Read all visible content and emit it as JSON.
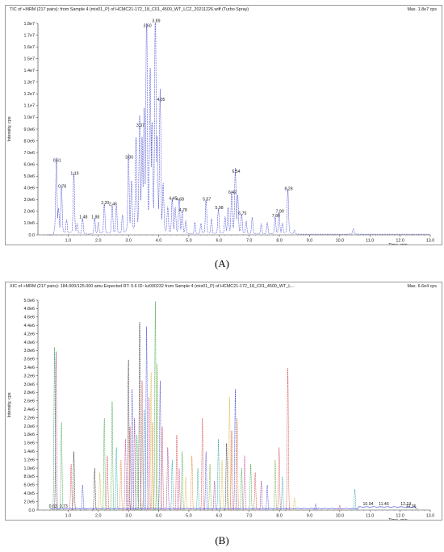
{
  "chart_data": [
    {
      "type": "line",
      "panel_label": "(A)",
      "header": "TIC of +MRM (217 pairs): from Sample 4 (mix01_P) of HCMC21-172_18_C01_4500_WT_LCZ_20211226.wiff (Turbo Spray)",
      "max_label": "Max. 1.8e7 cps",
      "xlabel": "Time, min",
      "ylabel": "Intensity, cps",
      "xlim": [
        0,
        13
      ],
      "ylim": [
        0,
        18000000
      ],
      "x_ticks": [
        "1.0",
        "2.0",
        "3.0",
        "4.0",
        "5.0",
        "6.0",
        "7.0",
        "8.0",
        "9.0",
        "10.0",
        "11.0",
        "12.0",
        "13.0"
      ],
      "y_ticks": [
        "0.0",
        "1.0e6",
        "2.0e6",
        "3.0e6",
        "4.0e6",
        "5.0e6",
        "6.0e6",
        "7.0e6",
        "8.0e6",
        "9.0e6",
        "1.0e7",
        "1.1e7",
        "1.2e7",
        "1.3e7",
        "1.4e7",
        "1.5e7",
        "1.6e7",
        "1.7e7",
        "1.8e7"
      ],
      "color": "#3a3fd0",
      "peaks": [
        {
          "label": "0.61",
          "x": 0.61,
          "y": 6100000
        },
        {
          "label": "0.78",
          "x": 0.78,
          "y": 3900000
        },
        {
          "label": "1.19",
          "x": 1.19,
          "y": 5000000
        },
        {
          "label": "1.48",
          "x": 1.48,
          "y": 1300000
        },
        {
          "label": "1.88",
          "x": 1.88,
          "y": 1300000
        },
        {
          "label": "2.20",
          "x": 2.2,
          "y": 2500000
        },
        {
          "label": "2.46",
          "x": 2.46,
          "y": 2400000
        },
        {
          "label": "3.00",
          "x": 3.0,
          "y": 6400000
        },
        {
          "label": "3.37",
          "x": 3.37,
          "y": 9100000
        },
        {
          "label": "3.60",
          "x": 3.6,
          "y": 17600000
        },
        {
          "label": "3.89",
          "x": 3.89,
          "y": 18000000
        },
        {
          "label": "4.05",
          "x": 4.05,
          "y": 11300000
        },
        {
          "label": "4.45",
          "x": 4.45,
          "y": 2900000
        },
        {
          "label": "4.68",
          "x": 4.68,
          "y": 2800000
        },
        {
          "label": "4.78",
          "x": 4.78,
          "y": 1900000
        },
        {
          "label": "5.57",
          "x": 5.57,
          "y": 2800000
        },
        {
          "label": "5.98",
          "x": 5.98,
          "y": 2100000
        },
        {
          "label": "6.42",
          "x": 6.42,
          "y": 3400000
        },
        {
          "label": "6.54",
          "x": 6.54,
          "y": 5200000
        },
        {
          "label": "6.75",
          "x": 6.75,
          "y": 1600000
        },
        {
          "label": "7.86",
          "x": 7.86,
          "y": 1400000
        },
        {
          "label": "7.99",
          "x": 7.99,
          "y": 1800000
        },
        {
          "label": "8.28",
          "x": 8.28,
          "y": 3700000
        }
      ]
    },
    {
      "type": "line",
      "panel_label": "(B)",
      "header": "XIC of +MRM (217 pairs): 184.000/125.000 amu Expected RT: 0.6 ID: kz000232 from Sample 4 (mix01_P) of HCMC21-172_18_C01_4500_WT_L...",
      "max_label": "Max. 6.6e4 cps",
      "xlabel": "Time, min",
      "ylabel": "Intensity, cps",
      "xlim": [
        0,
        13
      ],
      "ylim": [
        0,
        5000000
      ],
      "x_ticks": [
        "1.0",
        "2.0",
        "3.0",
        "4.0",
        "5.0",
        "6.0",
        "7.0",
        "8.0",
        "9.0",
        "10.0",
        "11.0",
        "12.0",
        "13.0"
      ],
      "y_ticks": [
        "0.0",
        "2.0e5",
        "4.0e5",
        "6.0e5",
        "8.0e5",
        "1.0e6",
        "1.2e6",
        "1.4e6",
        "1.6e6",
        "1.8e6",
        "2.0e6",
        "2.2e6",
        "2.4e6",
        "2.6e6",
        "2.8e6",
        "3.0e6",
        "3.2e6",
        "3.4e6",
        "3.6e6",
        "3.8e6",
        "4.0e6",
        "4.2e6",
        "4.4e6",
        "4.6e6",
        "4.8e6",
        "5.0e6"
      ],
      "colors": [
        "#2f9e3a",
        "#3a3fd0",
        "#d4b22a",
        "#d23a3a",
        "#8a2a8a",
        "#1e9c9c",
        "#e07a1e",
        "#c83ca0",
        "#6aa02a",
        "#222222"
      ],
      "series_peaks": [
        {
          "x": 0.55,
          "y": 3900000,
          "c": 0
        },
        {
          "x": 0.6,
          "y": 3800000,
          "c": 4
        },
        {
          "x": 0.78,
          "y": 2100000,
          "c": 0
        },
        {
          "x": 1.1,
          "y": 1100000,
          "c": 3
        },
        {
          "x": 1.19,
          "y": 1400000,
          "c": 9
        },
        {
          "x": 1.48,
          "y": 600000,
          "c": 1
        },
        {
          "x": 1.88,
          "y": 1000000,
          "c": 9
        },
        {
          "x": 2.05,
          "y": 900000,
          "c": 2
        },
        {
          "x": 2.2,
          "y": 2200000,
          "c": 0
        },
        {
          "x": 2.3,
          "y": 1300000,
          "c": 3
        },
        {
          "x": 2.46,
          "y": 2600000,
          "c": 0
        },
        {
          "x": 2.6,
          "y": 1500000,
          "c": 5
        },
        {
          "x": 2.75,
          "y": 1200000,
          "c": 6
        },
        {
          "x": 2.9,
          "y": 1700000,
          "c": 7
        },
        {
          "x": 3.0,
          "y": 3600000,
          "c": 9
        },
        {
          "x": 3.05,
          "y": 2000000,
          "c": 3
        },
        {
          "x": 3.12,
          "y": 2900000,
          "c": 1
        },
        {
          "x": 3.2,
          "y": 2200000,
          "c": 4
        },
        {
          "x": 3.28,
          "y": 1800000,
          "c": 0
        },
        {
          "x": 3.37,
          "y": 4500000,
          "c": 9
        },
        {
          "x": 3.45,
          "y": 3100000,
          "c": 3
        },
        {
          "x": 3.52,
          "y": 2400000,
          "c": 5
        },
        {
          "x": 3.6,
          "y": 4400000,
          "c": 1
        },
        {
          "x": 3.68,
          "y": 2700000,
          "c": 7
        },
        {
          "x": 3.75,
          "y": 3300000,
          "c": 2
        },
        {
          "x": 3.8,
          "y": 2100000,
          "c": 6
        },
        {
          "x": 3.89,
          "y": 5000000,
          "c": 0
        },
        {
          "x": 3.95,
          "y": 3500000,
          "c": 8
        },
        {
          "x": 4.05,
          "y": 3100000,
          "c": 1
        },
        {
          "x": 4.12,
          "y": 2000000,
          "c": 3
        },
        {
          "x": 4.3,
          "y": 1500000,
          "c": 4
        },
        {
          "x": 4.45,
          "y": 1200000,
          "c": 5
        },
        {
          "x": 4.6,
          "y": 1800000,
          "c": 3
        },
        {
          "x": 4.68,
          "y": 1000000,
          "c": 7
        },
        {
          "x": 4.78,
          "y": 1400000,
          "c": 0
        },
        {
          "x": 4.9,
          "y": 800000,
          "c": 2
        },
        {
          "x": 5.1,
          "y": 1300000,
          "c": 6
        },
        {
          "x": 5.3,
          "y": 1000000,
          "c": 5
        },
        {
          "x": 5.45,
          "y": 2200000,
          "c": 3
        },
        {
          "x": 5.57,
          "y": 1400000,
          "c": 1
        },
        {
          "x": 5.7,
          "y": 1100000,
          "c": 8
        },
        {
          "x": 5.85,
          "y": 700000,
          "c": 4
        },
        {
          "x": 5.98,
          "y": 1700000,
          "c": 5
        },
        {
          "x": 6.1,
          "y": 1200000,
          "c": 2
        },
        {
          "x": 6.25,
          "y": 1600000,
          "c": 9
        },
        {
          "x": 6.35,
          "y": 2700000,
          "c": 2
        },
        {
          "x": 6.42,
          "y": 1900000,
          "c": 3
        },
        {
          "x": 6.54,
          "y": 2900000,
          "c": 1
        },
        {
          "x": 6.6,
          "y": 2200000,
          "c": 6
        },
        {
          "x": 6.75,
          "y": 1000000,
          "c": 0
        },
        {
          "x": 6.85,
          "y": 1300000,
          "c": 7
        },
        {
          "x": 7.05,
          "y": 1100000,
          "c": 0
        },
        {
          "x": 7.2,
          "y": 900000,
          "c": 3
        },
        {
          "x": 7.4,
          "y": 700000,
          "c": 4
        },
        {
          "x": 7.6,
          "y": 600000,
          "c": 1
        },
        {
          "x": 7.86,
          "y": 1200000,
          "c": 8
        },
        {
          "x": 7.99,
          "y": 1500000,
          "c": 3
        },
        {
          "x": 8.1,
          "y": 800000,
          "c": 5
        },
        {
          "x": 8.28,
          "y": 3400000,
          "c": 3
        },
        {
          "x": 8.5,
          "y": 300000,
          "c": 2
        },
        {
          "x": 9.2,
          "y": 150000,
          "c": 1
        },
        {
          "x": 10.0,
          "y": 120000,
          "c": 3
        },
        {
          "x": 10.5,
          "y": 500000,
          "c": 5
        }
      ],
      "peak_labels": [
        {
          "label": "0.63",
          "x": 0.5,
          "y": 30000
        },
        {
          "label": "0.73",
          "x": 0.85,
          "y": 30000
        },
        {
          "label": "10.94",
          "x": 10.94,
          "y": 90000
        },
        {
          "label": "11.46",
          "x": 11.46,
          "y": 90000
        },
        {
          "label": "12.19",
          "x": 12.19,
          "y": 90000
        },
        {
          "label": "12.36",
          "x": 12.36,
          "y": 30000
        }
      ]
    }
  ],
  "captions": {
    "a": "(A)",
    "b": "(B)"
  }
}
